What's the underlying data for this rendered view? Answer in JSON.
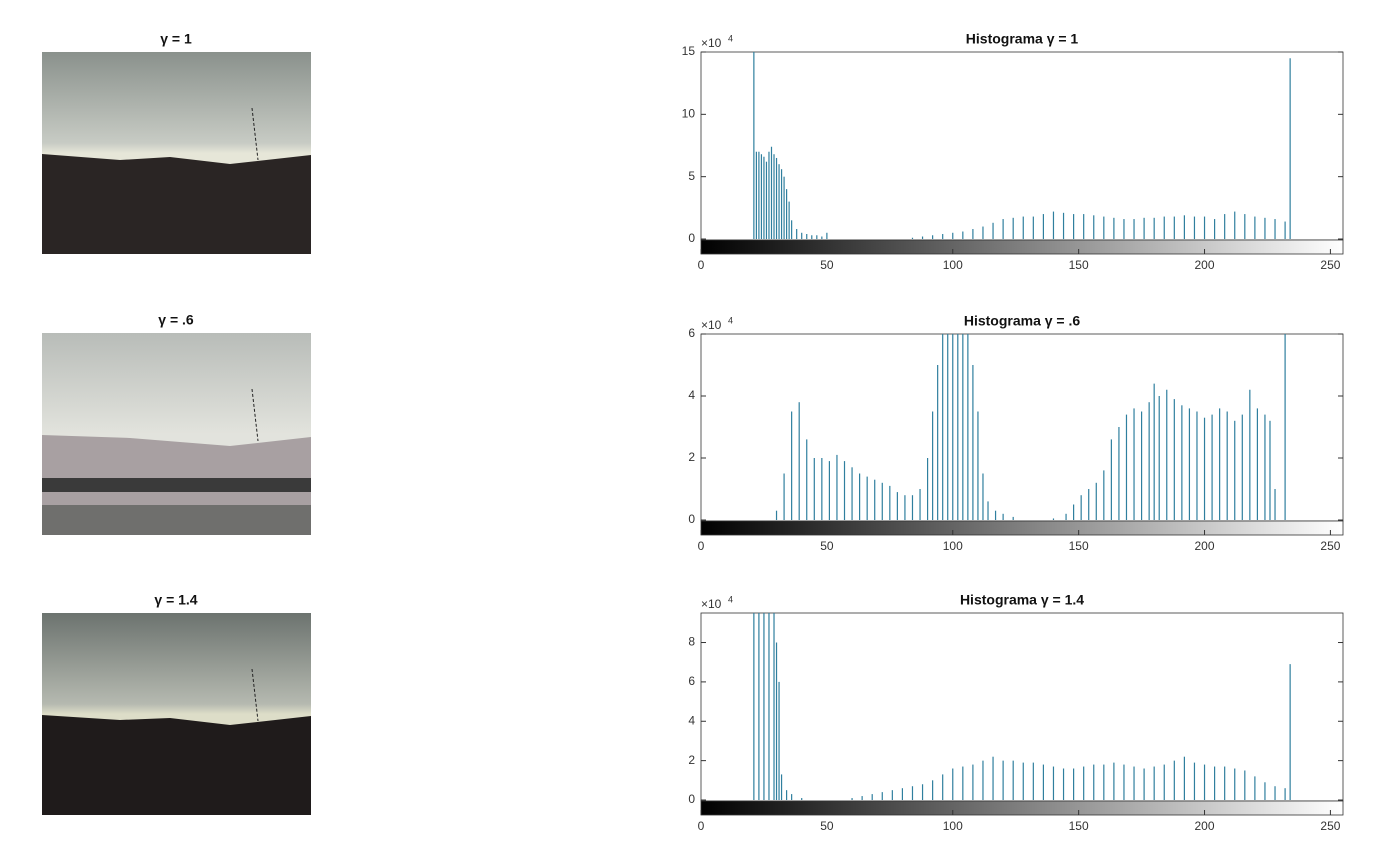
{
  "chart_data": [
    {
      "type": "image",
      "title": "γ = 1"
    },
    {
      "type": "stem",
      "title": "Histograma γ = 1",
      "exponent_base": "×10",
      "exponent": "4",
      "color": "#2f7f9e",
      "xlim": [
        0,
        255
      ],
      "xticks": [
        0,
        50,
        100,
        150,
        200,
        250
      ],
      "ylim": [
        0,
        15
      ],
      "yticks": [
        0,
        5,
        10,
        15
      ],
      "x": [
        21,
        22,
        23,
        24,
        25,
        26,
        27,
        28,
        29,
        30,
        31,
        32,
        33,
        34,
        35,
        36,
        38,
        40,
        42,
        44,
        46,
        48,
        50,
        84,
        88,
        92,
        96,
        100,
        104,
        108,
        112,
        116,
        120,
        124,
        128,
        132,
        136,
        140,
        144,
        148,
        152,
        156,
        160,
        164,
        168,
        172,
        176,
        180,
        184,
        188,
        192,
        196,
        200,
        204,
        208,
        212,
        216,
        220,
        224,
        228,
        232,
        234
      ],
      "values": [
        15,
        7,
        7,
        6.8,
        6.6,
        6.2,
        7,
        7.4,
        6.8,
        6.5,
        6,
        5.6,
        5,
        4,
        3,
        1.5,
        0.8,
        0.5,
        0.4,
        0.3,
        0.3,
        0.2,
        0.5,
        0.1,
        0.2,
        0.3,
        0.4,
        0.5,
        0.6,
        0.8,
        1.0,
        1.3,
        1.6,
        1.7,
        1.8,
        1.8,
        2.0,
        2.2,
        2.1,
        2.0,
        2.0,
        1.9,
        1.8,
        1.7,
        1.6,
        1.6,
        1.7,
        1.7,
        1.8,
        1.8,
        1.9,
        1.8,
        1.8,
        1.6,
        2.0,
        2.2,
        2.0,
        1.8,
        1.7,
        1.6,
        1.4,
        14.5
      ]
    },
    {
      "type": "image",
      "title": "γ = .6"
    },
    {
      "type": "stem",
      "title": "Histograma γ = .6",
      "exponent_base": "×10",
      "exponent": "4",
      "color": "#2f7f9e",
      "xlim": [
        0,
        255
      ],
      "xticks": [
        0,
        50,
        100,
        150,
        200,
        250
      ],
      "ylim": [
        0,
        6
      ],
      "yticks": [
        0,
        2,
        4,
        6
      ],
      "x": [
        30,
        33,
        36,
        39,
        42,
        45,
        48,
        51,
        54,
        57,
        60,
        63,
        66,
        69,
        72,
        75,
        78,
        81,
        84,
        87,
        90,
        92,
        94,
        96,
        98,
        100,
        102,
        104,
        106,
        108,
        110,
        112,
        114,
        117,
        120,
        124,
        140,
        145,
        148,
        151,
        154,
        157,
        160,
        163,
        166,
        169,
        172,
        175,
        178,
        180,
        182,
        185,
        188,
        191,
        194,
        197,
        200,
        203,
        206,
        209,
        212,
        215,
        218,
        221,
        224,
        226,
        228,
        232
      ],
      "values": [
        0.3,
        1.5,
        3.5,
        3.8,
        2.6,
        2,
        2,
        1.9,
        2.1,
        1.9,
        1.7,
        1.5,
        1.4,
        1.3,
        1.2,
        1.1,
        0.9,
        0.8,
        0.8,
        1.0,
        2.0,
        3.5,
        5,
        6,
        6,
        6,
        6,
        6,
        6,
        5,
        3.5,
        1.5,
        0.6,
        0.3,
        0.2,
        0.1,
        0.05,
        0.2,
        0.5,
        0.8,
        1.0,
        1.2,
        1.6,
        2.6,
        3.0,
        3.4,
        3.6,
        3.5,
        3.8,
        4.4,
        4.0,
        4.2,
        3.9,
        3.7,
        3.6,
        3.5,
        3.3,
        3.4,
        3.6,
        3.5,
        3.2,
        3.4,
        4.2,
        3.6,
        3.4,
        3.2,
        1.0,
        6
      ]
    },
    {
      "type": "image",
      "title": "γ = 1.4"
    },
    {
      "type": "stem",
      "title": "Histograma γ = 1.4",
      "exponent_base": "×10",
      "exponent": "4",
      "color": "#2f7f9e",
      "xlim": [
        0,
        255
      ],
      "xticks": [
        0,
        50,
        100,
        150,
        200,
        250
      ],
      "ylim": [
        0,
        9.5
      ],
      "yticks": [
        0,
        2,
        4,
        6,
        8
      ],
      "x": [
        21,
        23,
        25,
        27,
        29,
        30,
        31,
        32,
        34,
        36,
        40,
        60,
        64,
        68,
        72,
        76,
        80,
        84,
        88,
        92,
        96,
        100,
        104,
        108,
        112,
        116,
        120,
        124,
        128,
        132,
        136,
        140,
        144,
        148,
        152,
        156,
        160,
        164,
        168,
        172,
        176,
        180,
        184,
        188,
        192,
        196,
        200,
        204,
        208,
        212,
        216,
        220,
        224,
        228,
        232,
        234
      ],
      "values": [
        9.5,
        9.5,
        9.5,
        9.5,
        9.5,
        8,
        6,
        1.3,
        0.5,
        0.3,
        0.1,
        0.1,
        0.2,
        0.3,
        0.4,
        0.5,
        0.6,
        0.7,
        0.8,
        1.0,
        1.3,
        1.6,
        1.7,
        1.8,
        2.0,
        2.2,
        2.0,
        2.0,
        1.9,
        1.9,
        1.8,
        1.7,
        1.6,
        1.6,
        1.7,
        1.8,
        1.8,
        1.9,
        1.8,
        1.7,
        1.6,
        1.7,
        1.8,
        2.0,
        2.2,
        1.9,
        1.8,
        1.7,
        1.7,
        1.6,
        1.5,
        1.2,
        0.9,
        0.7,
        0.6,
        6.9
      ]
    }
  ]
}
